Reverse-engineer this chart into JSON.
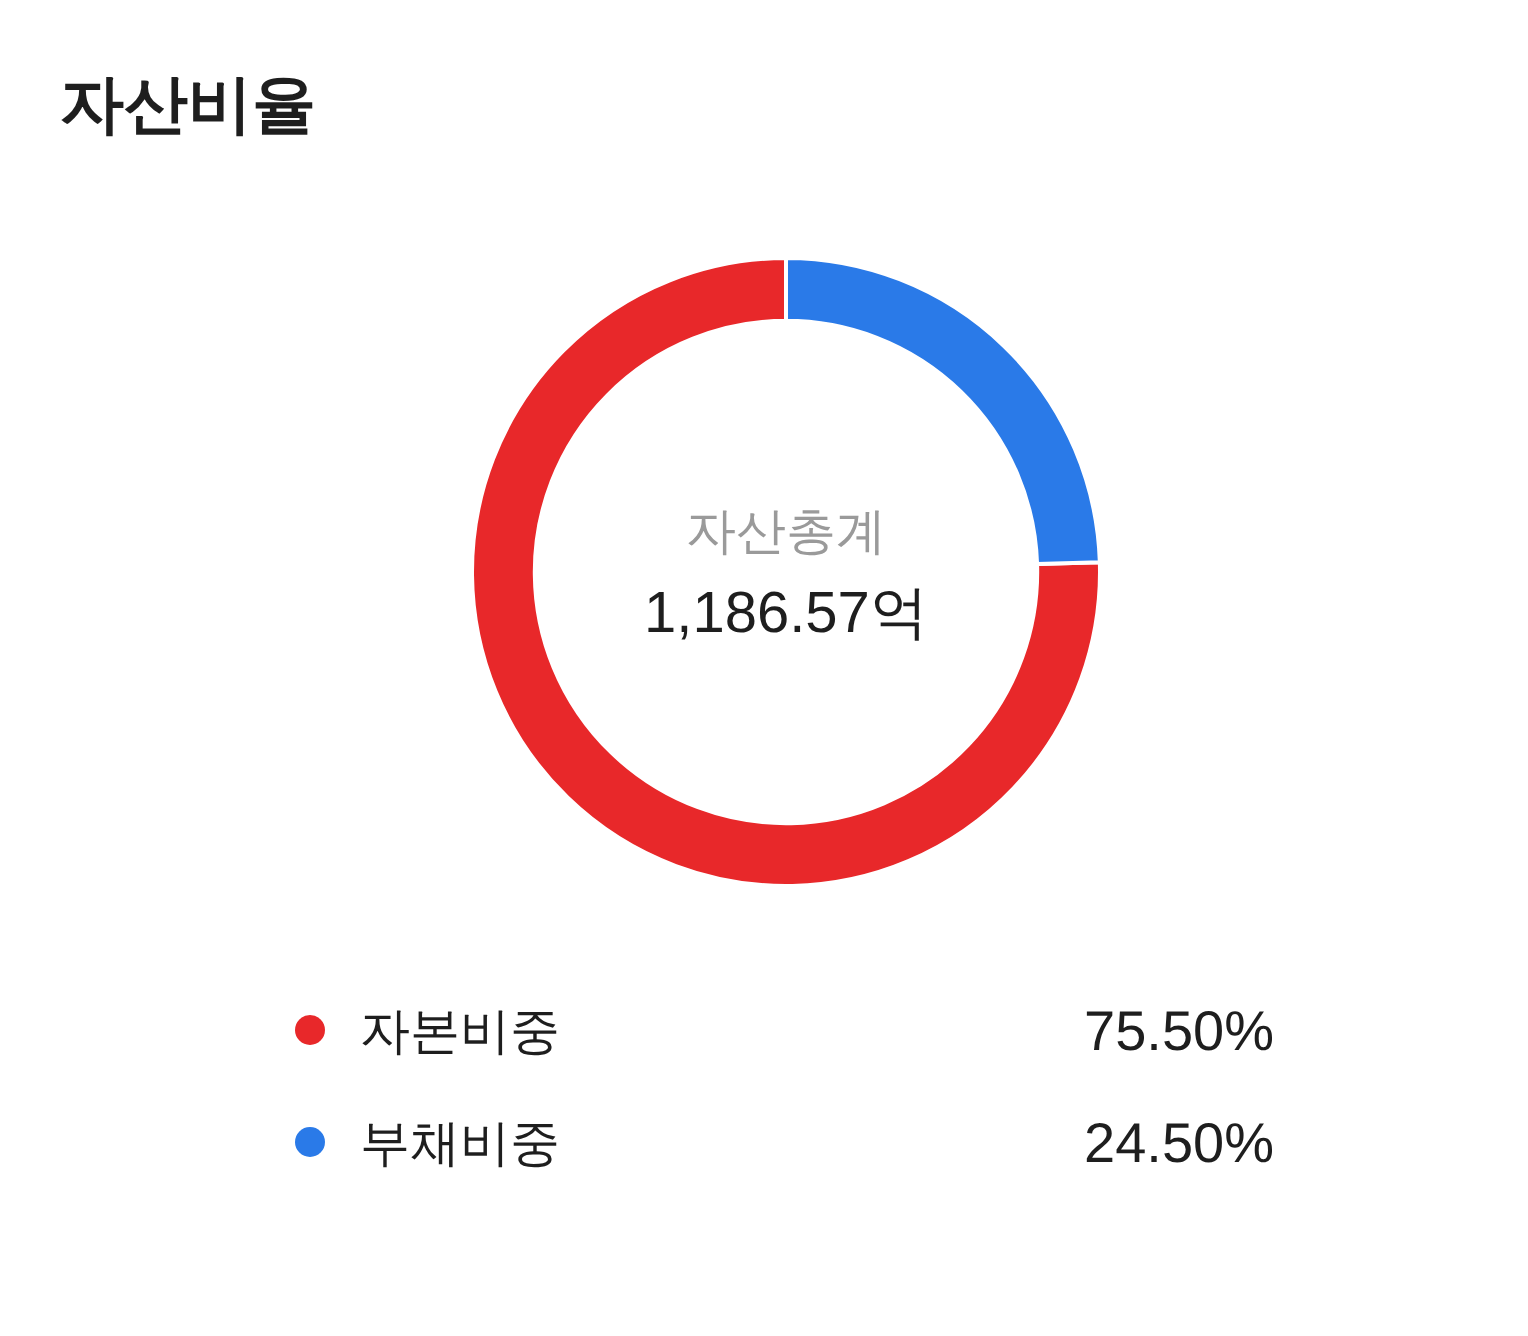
{
  "chart_data": {
    "type": "donut",
    "title": "자산비율",
    "categories": [
      "자본비중",
      "부채비중"
    ],
    "values": [
      75.5,
      24.5
    ],
    "colors": [
      "#e8282a",
      "#2a7ae8"
    ],
    "value_labels": [
      "75.50%",
      "24.50%"
    ],
    "annotations": [
      "자산총계",
      "1,186.57억"
    ],
    "legend": "bottom"
  }
}
